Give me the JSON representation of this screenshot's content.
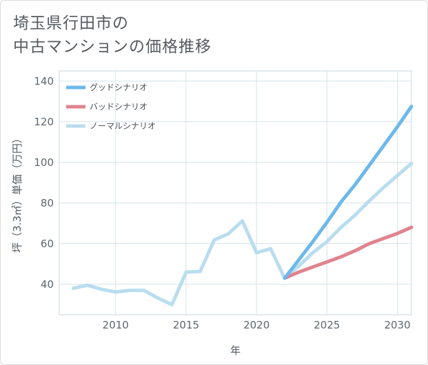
{
  "chart_data": {
    "type": "line",
    "title": [
      "埼玉県行田市の",
      "中古マンションの価格推移"
    ],
    "xlabel": "年",
    "ylabel": "坪（3.3㎡）単価（万円）",
    "xlim": [
      2006,
      2031
    ],
    "ylim": [
      25,
      145
    ],
    "x_ticks": [
      2010,
      2015,
      2020,
      2025,
      2030
    ],
    "y_ticks": [
      40,
      60,
      80,
      100,
      120,
      140
    ],
    "grid": true,
    "legend_position": "top-left",
    "series": [
      {
        "name": "グッドシナリオ",
        "color": "#6cb8ea",
        "x": [
          2022,
          2023,
          2024,
          2025,
          2026,
          2027,
          2028,
          2029,
          2030,
          2031
        ],
        "values": [
          43,
          52,
          61,
          70.5,
          80.5,
          89,
          98.5,
          108,
          117.5,
          127.5
        ]
      },
      {
        "name": "バッドシナリオ",
        "color": "#e0838f",
        "x": [
          2022,
          2023,
          2024,
          2025,
          2026,
          2027,
          2028,
          2029,
          2030,
          2031
        ],
        "values": [
          43,
          46,
          48.5,
          51,
          53.5,
          56.5,
          60,
          62.5,
          65,
          68
        ]
      },
      {
        "name": "ノーマルシナリオ",
        "color": "#b9ddef",
        "x": [
          2007,
          2008,
          2009,
          2010,
          2011,
          2012,
          2013,
          2014,
          2015,
          2016,
          2017,
          2018,
          2019,
          2020,
          2021,
          2022,
          2023,
          2024,
          2025,
          2026,
          2027,
          2028,
          2029,
          2030,
          2031
        ],
        "values": [
          38,
          39.5,
          37.5,
          36.2,
          37,
          37,
          33.2,
          30,
          46,
          46.3,
          61.8,
          64.8,
          71.2,
          55.5,
          57.5,
          43,
          49,
          55.5,
          61,
          68,
          74,
          81,
          87.5,
          93.5,
          99.5
        ]
      }
    ]
  }
}
